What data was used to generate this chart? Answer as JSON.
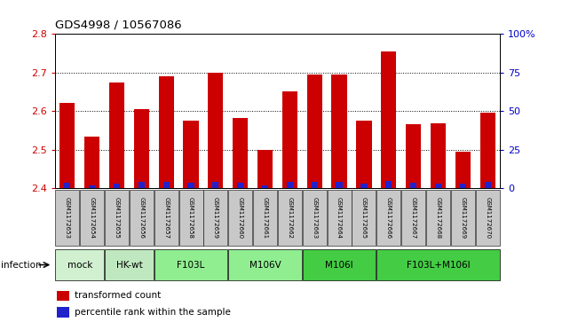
{
  "title": "GDS4998 / 10567086",
  "samples": [
    "GSM1172653",
    "GSM1172654",
    "GSM1172655",
    "GSM1172656",
    "GSM1172657",
    "GSM1172658",
    "GSM1172659",
    "GSM1172660",
    "GSM1172661",
    "GSM1172662",
    "GSM1172663",
    "GSM1172664",
    "GSM1172665",
    "GSM1172666",
    "GSM1172667",
    "GSM1172668",
    "GSM1172669",
    "GSM1172670"
  ],
  "red_values": [
    2.622,
    2.535,
    2.675,
    2.605,
    2.69,
    2.575,
    2.7,
    2.582,
    2.5,
    2.65,
    2.695,
    2.695,
    2.575,
    2.755,
    2.565,
    2.568,
    2.495,
    2.595
  ],
  "blue_values": [
    3.5,
    2.0,
    3.0,
    4.5,
    4.0,
    3.5,
    4.0,
    3.5,
    2.0,
    4.0,
    4.5,
    4.5,
    3.0,
    5.0,
    3.5,
    3.0,
    3.0,
    4.0
  ],
  "ylim_left": [
    2.4,
    2.8
  ],
  "ylim_right": [
    0,
    100
  ],
  "yticks_left": [
    2.4,
    2.5,
    2.6,
    2.7,
    2.8
  ],
  "yticks_right": [
    0,
    25,
    50,
    75,
    100
  ],
  "bar_color": "#cc0000",
  "blue_color": "#2222cc",
  "sample_box_color": "#c8c8c8",
  "group_configs": [
    {
      "label": "mock",
      "indices": [
        0,
        1
      ],
      "color": "#d0f0d0"
    },
    {
      "label": "HK-wt",
      "indices": [
        2,
        3
      ],
      "color": "#c0e8c0"
    },
    {
      "label": "F103L",
      "indices": [
        4,
        5,
        6
      ],
      "color": "#90ee90"
    },
    {
      "label": "M106V",
      "indices": [
        7,
        8,
        9
      ],
      "color": "#90ee90"
    },
    {
      "label": "M106I",
      "indices": [
        10,
        11,
        12
      ],
      "color": "#44cc44"
    },
    {
      "label": "F103L+M106I",
      "indices": [
        13,
        14,
        15,
        16,
        17
      ],
      "color": "#44cc44"
    }
  ],
  "legend_red": "transformed count",
  "legend_blue": "percentile rank within the sample",
  "infection_label": "infection"
}
